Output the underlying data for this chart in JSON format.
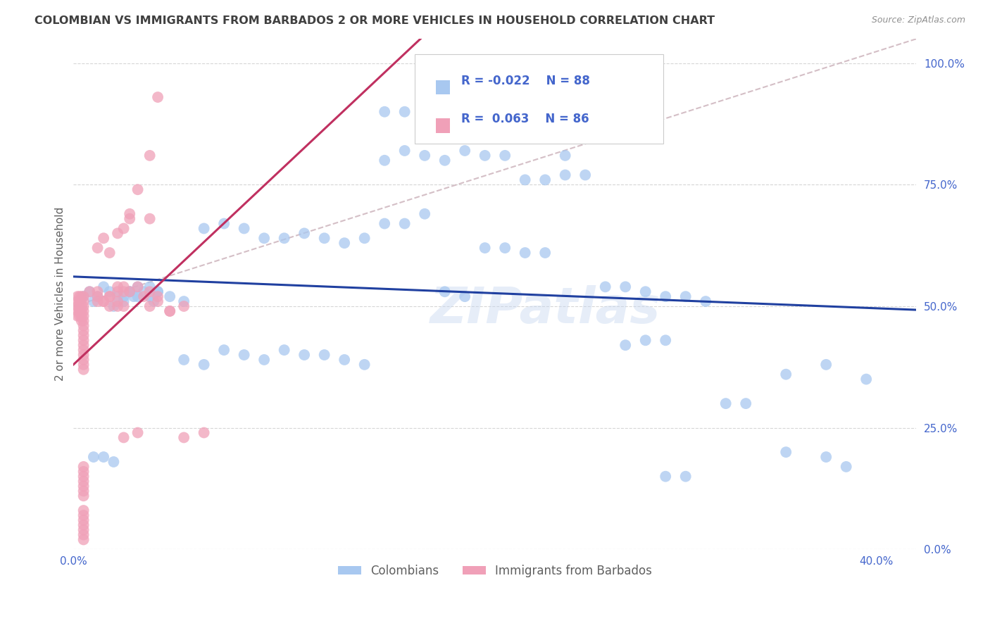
{
  "title": "COLOMBIAN VS IMMIGRANTS FROM BARBADOS 2 OR MORE VEHICLES IN HOUSEHOLD CORRELATION CHART",
  "source": "Source: ZipAtlas.com",
  "ylabel": "2 or more Vehicles in Household",
  "ytick_vals": [
    0.0,
    0.25,
    0.5,
    0.75,
    1.0
  ],
  "ytick_labels": [
    "0.0%",
    "25.0%",
    "50.0%",
    "75.0%",
    "100.0%"
  ],
  "xtick_vals": [
    0.0,
    0.4
  ],
  "xtick_labels": [
    "0.0%",
    "40.0%"
  ],
  "legend_label1": "Colombians",
  "legend_label2": "Immigrants from Barbados",
  "R1": -0.022,
  "N1": 88,
  "R2": 0.063,
  "N2": 86,
  "color_blue": "#a8c8f0",
  "color_pink": "#f0a0b8",
  "line_color_blue": "#2040a0",
  "line_color_pink": "#c03060",
  "diag_line_color": "#d0b8c0",
  "background_color": "#ffffff",
  "grid_color": "#cccccc",
  "title_color": "#404040",
  "ylabel_color": "#606060",
  "source_color": "#909090",
  "tick_color": "#4466cc",
  "legend_text_color": "#4466cc",
  "xlim": [
    0.0,
    0.42
  ],
  "ylim": [
    -0.02,
    1.05
  ],
  "blue_x": [
    0.005,
    0.008,
    0.01,
    0.012,
    0.015,
    0.018,
    0.02,
    0.022,
    0.025,
    0.028,
    0.03,
    0.032,
    0.035,
    0.038,
    0.04,
    0.042,
    0.01,
    0.015,
    0.02,
    0.025,
    0.028,
    0.032,
    0.038,
    0.042,
    0.048,
    0.055,
    0.065,
    0.075,
    0.085,
    0.095,
    0.105,
    0.115,
    0.125,
    0.135,
    0.145,
    0.155,
    0.165,
    0.175,
    0.185,
    0.195,
    0.205,
    0.215,
    0.225,
    0.235,
    0.245,
    0.255,
    0.265,
    0.275,
    0.285,
    0.295,
    0.155,
    0.165,
    0.175,
    0.185,
    0.195,
    0.205,
    0.215,
    0.225,
    0.235,
    0.245,
    0.275,
    0.285,
    0.295,
    0.305,
    0.315,
    0.055,
    0.065,
    0.075,
    0.085,
    0.095,
    0.105,
    0.115,
    0.125,
    0.135,
    0.145,
    0.155,
    0.165,
    0.175,
    0.355,
    0.375,
    0.385,
    0.395,
    0.355,
    0.375,
    0.295,
    0.305,
    0.325,
    0.335
  ],
  "blue_y": [
    0.52,
    0.53,
    0.51,
    0.52,
    0.54,
    0.53,
    0.5,
    0.52,
    0.51,
    0.53,
    0.52,
    0.54,
    0.53,
    0.52,
    0.51,
    0.53,
    0.19,
    0.19,
    0.18,
    0.52,
    0.53,
    0.52,
    0.54,
    0.53,
    0.52,
    0.51,
    0.66,
    0.67,
    0.66,
    0.64,
    0.64,
    0.65,
    0.64,
    0.63,
    0.64,
    0.67,
    0.67,
    0.69,
    0.53,
    0.52,
    0.62,
    0.62,
    0.61,
    0.61,
    0.77,
    0.77,
    0.54,
    0.54,
    0.53,
    0.52,
    0.8,
    0.82,
    0.81,
    0.8,
    0.82,
    0.81,
    0.81,
    0.76,
    0.76,
    0.81,
    0.42,
    0.43,
    0.43,
    0.52,
    0.51,
    0.39,
    0.38,
    0.41,
    0.4,
    0.39,
    0.41,
    0.4,
    0.4,
    0.39,
    0.38,
    0.9,
    0.9,
    0.93,
    0.2,
    0.19,
    0.17,
    0.35,
    0.36,
    0.38,
    0.15,
    0.15,
    0.3,
    0.3
  ],
  "pink_x": [
    0.002,
    0.002,
    0.002,
    0.002,
    0.002,
    0.003,
    0.003,
    0.003,
    0.003,
    0.003,
    0.004,
    0.004,
    0.004,
    0.004,
    0.004,
    0.005,
    0.005,
    0.005,
    0.005,
    0.005,
    0.005,
    0.005,
    0.005,
    0.005,
    0.005,
    0.005,
    0.005,
    0.005,
    0.005,
    0.005,
    0.005,
    0.005,
    0.005,
    0.005,
    0.005,
    0.005,
    0.005,
    0.005,
    0.005,
    0.005,
    0.005,
    0.005,
    0.005,
    0.005,
    0.005,
    0.008,
    0.012,
    0.015,
    0.018,
    0.022,
    0.025,
    0.028,
    0.035,
    0.038,
    0.042,
    0.048,
    0.055,
    0.065,
    0.012,
    0.015,
    0.018,
    0.022,
    0.025,
    0.028,
    0.012,
    0.022,
    0.025,
    0.032,
    0.038,
    0.042,
    0.025,
    0.032,
    0.038,
    0.012,
    0.018,
    0.022,
    0.015,
    0.018,
    0.022,
    0.025,
    0.028,
    0.032,
    0.038,
    0.042,
    0.048,
    0.055
  ],
  "pink_y": [
    0.52,
    0.5,
    0.49,
    0.48,
    0.51,
    0.52,
    0.5,
    0.49,
    0.48,
    0.51,
    0.52,
    0.5,
    0.49,
    0.48,
    0.47,
    0.52,
    0.51,
    0.5,
    0.49,
    0.48,
    0.47,
    0.46,
    0.45,
    0.44,
    0.43,
    0.42,
    0.41,
    0.4,
    0.39,
    0.38,
    0.37,
    0.11,
    0.12,
    0.13,
    0.14,
    0.15,
    0.16,
    0.17,
    0.08,
    0.07,
    0.06,
    0.05,
    0.04,
    0.03,
    0.02,
    0.53,
    0.52,
    0.51,
    0.5,
    0.53,
    0.54,
    0.53,
    0.52,
    0.68,
    0.51,
    0.49,
    0.23,
    0.24,
    0.62,
    0.64,
    0.61,
    0.65,
    0.66,
    0.68,
    0.53,
    0.54,
    0.53,
    0.54,
    0.53,
    0.52,
    0.23,
    0.24,
    0.5,
    0.51,
    0.52,
    0.5,
    0.51,
    0.52,
    0.51,
    0.5,
    0.69,
    0.74,
    0.81,
    0.93,
    0.49,
    0.5
  ]
}
